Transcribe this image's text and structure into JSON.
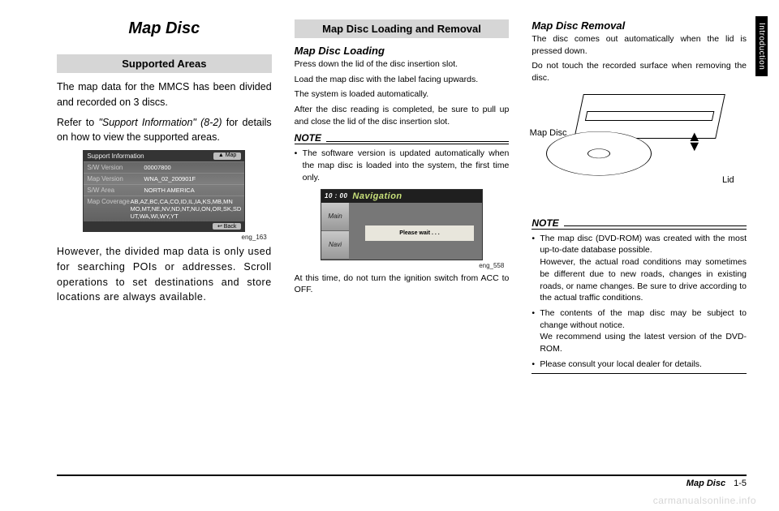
{
  "sidetab": "Introduction",
  "footer": {
    "title": "Map Disc",
    "page": "1-5"
  },
  "watermark": "carmanualsonline.info",
  "col1": {
    "title": "Map Disc",
    "section": "Supported Areas",
    "p1": "The map data for the MMCS has been divided and recorded on 3 discs.",
    "p2a": "Refer to ",
    "p2i": "\"Support Information\" (8-2)",
    "p2b": " for details on how to view the supported areas.",
    "screen": {
      "top_left": "Support Information",
      "top_btn": "▲ Map",
      "rows": [
        {
          "k": "S/W Version",
          "v": "00007800"
        },
        {
          "k": "Map Version",
          "v": "WNA_02_200901F"
        },
        {
          "k": "S/W Area",
          "v": "NORTH AMERICA"
        },
        {
          "k": "Map Coverage",
          "v": "AB,AZ,BC,CA,CO,ID,IL,IA,KS,MB,MN MO,MT,NE,NV,ND,NT,NU,ON,OR,SK,SD UT,WA,WI,WY,YT"
        }
      ],
      "bot_btn": "↩ Back"
    },
    "cap": "eng_163",
    "p3": "However, the divided map data is only used for searching POIs or addresses. Scroll operations to set destinations and store locations are always available."
  },
  "col2": {
    "section": "Map Disc Loading and Removal",
    "sub1": "Map Disc Loading",
    "p1": "Press down the lid of the disc insertion slot.",
    "p2": "Load the map disc with the label facing upwards.",
    "p3": "The system is loaded automatically.",
    "p4": "After the disc reading is completed, be sure to pull up and close the lid of the disc insertion slot.",
    "note_label": "NOTE",
    "note1": "The software version is updated automatically when the map disc is loaded into the system, the first time only.",
    "screen": {
      "clock": "10 : 00",
      "title": "Navigation",
      "btn1": "Main",
      "btn2": "Navi",
      "wait": "Please wait . . ."
    },
    "cap": "eng_558",
    "p5": "At this time, do not turn the ignition switch from ACC to OFF."
  },
  "col3": {
    "sub": "Map Disc Removal",
    "p1": "The disc comes out automatically when the lid is pressed down.",
    "p2": "Do not touch the recorded surface when removing the disc.",
    "lbl_map": "Map Disc",
    "lbl_lid": "Lid",
    "note_label": "NOTE",
    "notes": [
      "The map disc (DVD-ROM) was created with the most up-to-date database possible.\nHowever, the actual road conditions may sometimes be different due to new roads, changes in existing roads, or name changes. Be sure to drive according to the actual traffic conditions.",
      "The contents of the map disc may be subject to change without notice.\nWe recommend using the latest version of the DVD-ROM.",
      "Please consult your local dealer for details."
    ]
  }
}
